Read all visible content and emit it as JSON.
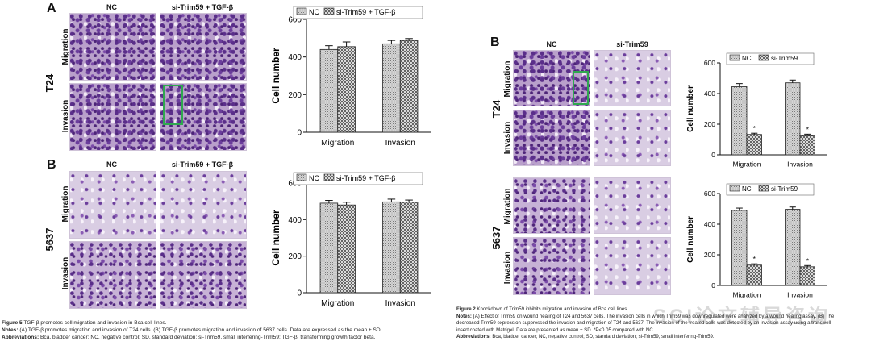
{
  "left_figure": {
    "panel_a_letter": "A",
    "panel_b_letter": "B",
    "col_nc": "NC",
    "col_treatment": "si-Trim59 + TGF-β",
    "row_migration": "Migration",
    "row_invasion": "Invasion",
    "cell_t24": "T24",
    "cell_5637": "5637",
    "caption": {
      "fig_label": "Figure 5",
      "fig_title": " TGF-β promotes cell migration and invasion in Bca cell lines.",
      "notes_label": "Notes:",
      "notes_text": " (A) TGF-β promotes migration and invasion of T24 cells. (B) TGF-β promotes migration and invasion of 5637 cells. Data are expressed as the mean ± SD.",
      "abbr_label": "Abbreviations:",
      "abbr_text": " Bca, bladder cancer; NC, negative control; SD, standard deviation; si-Trim59, small interfering-Trim59; TGF-β, transforming growth factor beta."
    }
  },
  "right_figure": {
    "panel_b_letter": "B",
    "col_nc": "NC",
    "col_treatment": "si-Trim59",
    "row_migration": "Migration",
    "row_invasion": "Invasion",
    "cell_t24": "T24",
    "cell_5637": "5637",
    "caption": {
      "fig_label": "Figure 2",
      "fig_title": " Knockdown of Trim59 inhibits migration and invasion of Bca cell lines.",
      "notes_label": "Notes:",
      "notes_line1": " (A) Effect of Trim59 on wound healing of T24 and 5637 cells. The invasion cells in which Trim59 was downregulated were analyzed by a wound healing assay. (B) The",
      "notes_line2": "decreased Trim59 expression suppressed the invasion and migration of T24 and 5637. The invasion of the treated cells was detected by an invasion assay using a transwell",
      "notes_line3": "insert coated with Matrigel. Data are presented as mean ± SD. *P<0.05 compared with NC.",
      "abbr_label": "Abbreviations:",
      "abbr_text": " Bca, bladder cancer; NC, negative control; SD, standard deviation; si-Trim59, small interfering-Trim59."
    },
    "watermark": "SCI论文辅导咨询"
  },
  "colors": {
    "bar_nc": "#bdbdbd",
    "bar_treat": "#e6e6e6",
    "outline": "#111111",
    "green_box": "#2fa84f"
  },
  "chart_data": [
    {
      "id": "A-T24",
      "type": "bar",
      "categories": [
        "Migration",
        "Invasion"
      ],
      "series": [
        {
          "name": "NC",
          "values": [
            440,
            470
          ],
          "errors": [
            20,
            18
          ]
        },
        {
          "name": "si-Trim59 + TGF-β",
          "values": [
            455,
            488
          ],
          "errors": [
            25,
            10
          ]
        }
      ],
      "ylabel": "Cell number",
      "ylim": [
        0,
        600
      ],
      "yticks": [
        0,
        200,
        400,
        600
      ],
      "legend": "top",
      "significance": []
    },
    {
      "id": "B-5637",
      "type": "bar",
      "categories": [
        "Migration",
        "Invasion"
      ],
      "series": [
        {
          "name": "NC",
          "values": [
            490,
            497
          ],
          "errors": [
            15,
            15
          ]
        },
        {
          "name": "si-Trim59 + TGF-β",
          "values": [
            480,
            495
          ],
          "errors": [
            15,
            12
          ]
        }
      ],
      "ylabel": "Cell number",
      "ylim": [
        0,
        600
      ],
      "yticks": [
        0,
        200,
        400,
        600
      ],
      "legend": "top",
      "significance": []
    },
    {
      "id": "R-T24",
      "type": "bar",
      "categories": [
        "Migration",
        "Invasion"
      ],
      "series": [
        {
          "name": "NC",
          "values": [
            445,
            470
          ],
          "errors": [
            20,
            18
          ]
        },
        {
          "name": "si-Trim59",
          "values": [
            133,
            125
          ],
          "errors": [
            8,
            10
          ]
        }
      ],
      "ylabel": "Cell number",
      "ylim": [
        0,
        600
      ],
      "yticks": [
        0,
        200,
        400,
        600
      ],
      "legend": "top",
      "significance": [
        null,
        "*"
      ]
    },
    {
      "id": "R-5637",
      "type": "bar",
      "categories": [
        "Migration",
        "Invasion"
      ],
      "series": [
        {
          "name": "NC",
          "values": [
            490,
            497
          ],
          "errors": [
            15,
            15
          ]
        },
        {
          "name": "si-Trim59",
          "values": [
            133,
            122
          ],
          "errors": [
            8,
            8
          ]
        }
      ],
      "ylabel": "Cell number",
      "ylim": [
        0,
        600
      ],
      "yticks": [
        0,
        200,
        400,
        600
      ],
      "legend": "top",
      "significance": [
        null,
        "*"
      ]
    }
  ]
}
